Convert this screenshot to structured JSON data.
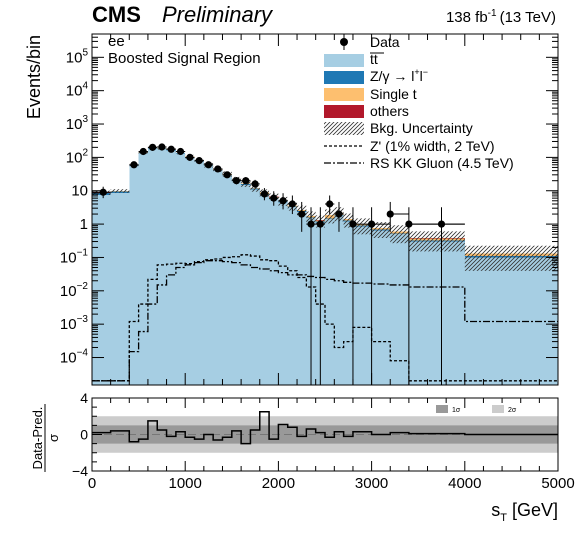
{
  "header": {
    "cms": "CMS",
    "preliminary": "Preliminary",
    "lumi": "138 fb",
    "lumi_exp": "-1",
    "energy": "(13 TeV)",
    "channel": "ee",
    "region": "Boosted Signal Region"
  },
  "legend": {
    "data": "Data",
    "ttbar": "tt",
    "dy": "Z/γ → l",
    "dy_sup1": "+",
    "dy_mid": "l",
    "dy_sup2": "−",
    "single_t": "Single t",
    "others": "others",
    "bkg_unc": "Bkg. Uncertainty",
    "zprime": "Z' (1% width, 2 TeV)",
    "rskk": "RS KK Gluon (4.5 TeV)"
  },
  "colors": {
    "ttbar": "#a6cee3",
    "dy": "#1f78b4",
    "single_t": "#fdbf6f",
    "others": "#b2182b",
    "band1": "#999999",
    "band2": "#cccccc"
  },
  "main_axis": {
    "ylabel": "Events/bin",
    "yticks": [
      {
        "b": "10",
        "e": "5",
        "v": 100000
      },
      {
        "b": "10",
        "e": "4",
        "v": 10000
      },
      {
        "b": "10",
        "e": "3",
        "v": 1000
      },
      {
        "b": "10",
        "e": "2",
        "v": 100
      },
      {
        "b": "10",
        "e": "",
        "v": 10
      },
      {
        "b": "1",
        "e": "",
        "v": 1
      },
      {
        "b": "10",
        "e": "−1",
        "v": 0.1
      },
      {
        "b": "10",
        "e": "−2",
        "v": 0.01
      },
      {
        "b": "10",
        "e": "−3",
        "v": 0.001
      },
      {
        "b": "10",
        "e": "−4",
        "v": 0.0001
      }
    ]
  },
  "ratio_axis": {
    "ylabel_num": "Data-Pred.",
    "ylabel_den": "σ",
    "yticks": [
      "4",
      "0",
      "−4"
    ],
    "band_1sigma": "1σ",
    "band_2sigma": "2σ"
  },
  "x_axis": {
    "label": "s",
    "label_sub": "T",
    "label_unit": "[GeV]",
    "ticks": [
      "0",
      "1000",
      "2000",
      "3000",
      "4000",
      "5000"
    ]
  },
  "chart_data": {
    "type": "bar",
    "x_range": [
      0,
      5000
    ],
    "y_log_range": [
      1.5e-05,
      500000
    ],
    "ratio_ylim": [
      -4,
      4
    ],
    "bin_edges": [
      0,
      200,
      400,
      500,
      600,
      700,
      800,
      900,
      1000,
      1100,
      1200,
      1300,
      1400,
      1500,
      1600,
      1700,
      1800,
      1900,
      2000,
      2100,
      2200,
      2300,
      2400,
      2500,
      2600,
      2700,
      2800,
      3000,
      3200,
      3400,
      4000,
      5000
    ],
    "stack": {
      "ttbar": [
        7.5,
        8.5,
        55,
        135,
        185,
        180,
        160,
        130,
        100,
        75,
        55,
        40,
        30,
        20,
        15,
        11,
        8,
        6,
        4.5,
        3.2,
        2.3,
        1.5,
        1.1,
        1.4,
        1.8,
        1.2,
        0.85,
        0.65,
        0.5,
        0.3,
        0.1
      ],
      "dy": [
        1.0,
        1.1,
        4,
        6,
        7,
        6,
        5,
        4,
        3.5,
        2.5,
        2,
        1.6,
        1.2,
        0.9,
        0.7,
        0.5,
        0.4,
        0.3,
        0.25,
        0.2,
        0.15,
        0.1,
        0.08,
        0.09,
        0.1,
        0.07,
        0.05,
        0.04,
        0.03,
        0.025,
        0.01
      ],
      "single_t": [
        0.2,
        0.3,
        1.5,
        3,
        4,
        4,
        3.5,
        3,
        2.5,
        2,
        1.6,
        1.2,
        0.9,
        0.7,
        0.55,
        0.45,
        0.35,
        0.3,
        0.25,
        0.2,
        0.18,
        0.15,
        0.12,
        0.4,
        0.3,
        0.15,
        0.08,
        0.07,
        0.06,
        0.05,
        0.02
      ],
      "others": [
        0.05,
        0.05,
        0.2,
        0.3,
        0.4,
        0.4,
        0.35,
        0.3,
        0.25,
        0.2,
        0.15,
        0.12,
        0.1,
        0.08,
        0.06,
        0.05,
        0.04,
        0.03,
        0.03,
        0.02,
        0.02,
        0.015,
        0.01,
        0.01,
        0.01,
        0.01,
        0.008,
        0.006,
        0.005,
        0.004,
        0.002
      ]
    },
    "bkg_unc_frac": [
      0.15,
      0.12,
      0.1,
      0.1,
      0.1,
      0.1,
      0.1,
      0.1,
      0.12,
      0.12,
      0.15,
      0.15,
      0.18,
      0.2,
      0.2,
      0.22,
      0.25,
      0.25,
      0.3,
      0.3,
      0.35,
      0.35,
      0.4,
      0.45,
      0.45,
      0.45,
      0.5,
      0.5,
      0.55,
      0.6,
      0.7
    ],
    "data_points": [
      {
        "x": 120,
        "y": 9
      },
      {
        "x": 450,
        "y": 60
      },
      {
        "x": 550,
        "y": 150
      },
      {
        "x": 650,
        "y": 200
      },
      {
        "x": 750,
        "y": 205
      },
      {
        "x": 850,
        "y": 175
      },
      {
        "x": 950,
        "y": 150
      },
      {
        "x": 1050,
        "y": 100
      },
      {
        "x": 1150,
        "y": 80
      },
      {
        "x": 1250,
        "y": 60
      },
      {
        "x": 1350,
        "y": 45
      },
      {
        "x": 1450,
        "y": 30
      },
      {
        "x": 1550,
        "y": 20
      },
      {
        "x": 1650,
        "y": 20
      },
      {
        "x": 1750,
        "y": 16
      },
      {
        "x": 1850,
        "y": 8
      },
      {
        "x": 1950,
        "y": 6
      },
      {
        "x": 2050,
        "y": 5
      },
      {
        "x": 2150,
        "y": 4
      },
      {
        "x": 2250,
        "y": 2
      },
      {
        "x": 2350,
        "y": 1
      },
      {
        "x": 2450,
        "y": 1
      },
      {
        "x": 2550,
        "y": 4
      },
      {
        "x": 2650,
        "y": 2
      },
      {
        "x": 2800,
        "y": 1
      },
      {
        "x": 3000,
        "y": 1
      },
      {
        "x": 3200,
        "y": 2
      },
      {
        "x": 3400,
        "y": 1
      },
      {
        "x": 3750,
        "y": 1
      }
    ],
    "zprime": [
      2e-05,
      2e-05,
      0.0012,
      0.004,
      0.022,
      0.06,
      0.063,
      0.067,
      0.065,
      0.075,
      0.085,
      0.09,
      0.1,
      0.105,
      0.12,
      0.11,
      0.085,
      0.08,
      0.055,
      0.04,
      0.025,
      0.013,
      0.004,
      0.001,
      0.0002,
      0.0003,
      0.0008,
      0.0003,
      8e-05,
      2e-05,
      2e-05
    ],
    "rskk": [
      2e-05,
      2e-05,
      0.00015,
      0.0006,
      0.004,
      0.015,
      0.03,
      0.05,
      0.06,
      0.07,
      0.08,
      0.08,
      0.075,
      0.07,
      0.06,
      0.05,
      0.045,
      0.04,
      0.035,
      0.03,
      0.03,
      0.027,
      0.025,
      0.022,
      0.02,
      0.018,
      0.017,
      0.016,
      0.015,
      0.013,
      0.0012
    ],
    "ratio_pulls": [
      0.2,
      0.4,
      -0.8,
      -0.5,
      1.5,
      0.5,
      -0.2,
      0.3,
      -0.3,
      -0.5,
      0.0,
      -0.6,
      -0.3,
      0.4,
      -1.0,
      0.5,
      2.5,
      -0.5,
      1.1,
      0.8,
      -0.2,
      0.6,
      0.2,
      -0.3,
      0.3,
      -0.2,
      0.3,
      0.0,
      0.2,
      0.1,
      0.0
    ]
  }
}
